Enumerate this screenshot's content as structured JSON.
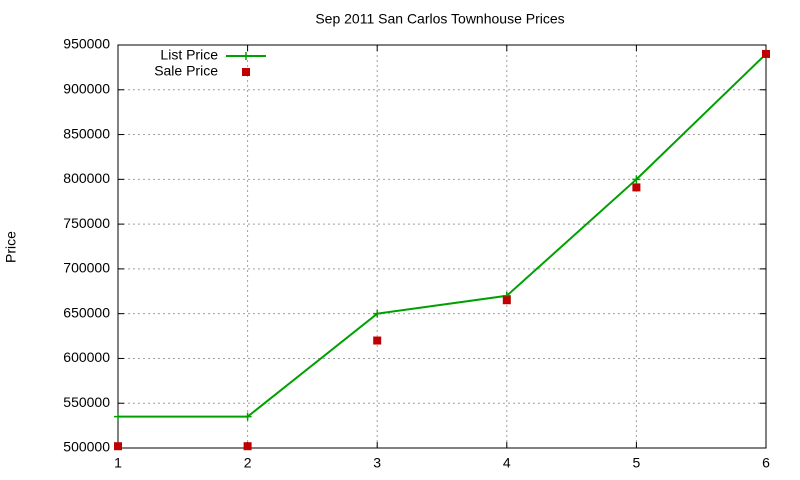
{
  "chart_data": {
    "type": "line",
    "title": "Sep 2011 San Carlos Townhouse Prices",
    "y_label": "Price",
    "x": [
      1,
      2,
      3,
      4,
      5,
      6
    ],
    "series": [
      {
        "name": "List Price",
        "color": "#00a000",
        "style": "linespoints",
        "values": [
          535000,
          535000,
          650000,
          670000,
          800000,
          940000
        ]
      },
      {
        "name": "Sale Price",
        "color": "#c00000",
        "style": "points",
        "values": [
          502000,
          502000,
          620000,
          665000,
          791000,
          940000
        ]
      }
    ],
    "xlim": [
      1,
      6
    ],
    "xticks": [
      1,
      2,
      3,
      4,
      5,
      6
    ],
    "ylim": [
      500000,
      950000
    ],
    "yticks": [
      500000,
      550000,
      600000,
      650000,
      700000,
      750000,
      800000,
      850000,
      900000,
      950000
    ],
    "grid": true,
    "legend": "top-left"
  }
}
